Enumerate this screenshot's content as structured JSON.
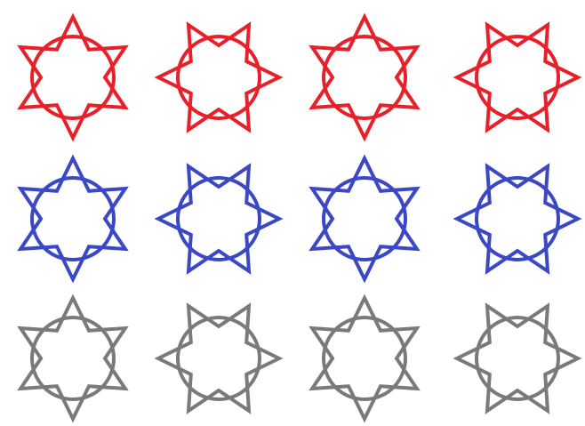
{
  "colors": {
    "red": "#e8202a",
    "blue": "#3a48c6",
    "gray": "#7a7a7a",
    "background": "#ffffff"
  },
  "grid": {
    "rows": 3,
    "columns": 4,
    "row_colors": [
      "red",
      "blue",
      "gray"
    ]
  },
  "motif": {
    "shape": "six-pointed star overlapping a circle",
    "column_orientations": [
      "point-up",
      "point-side",
      "point-up",
      "point-side"
    ]
  }
}
